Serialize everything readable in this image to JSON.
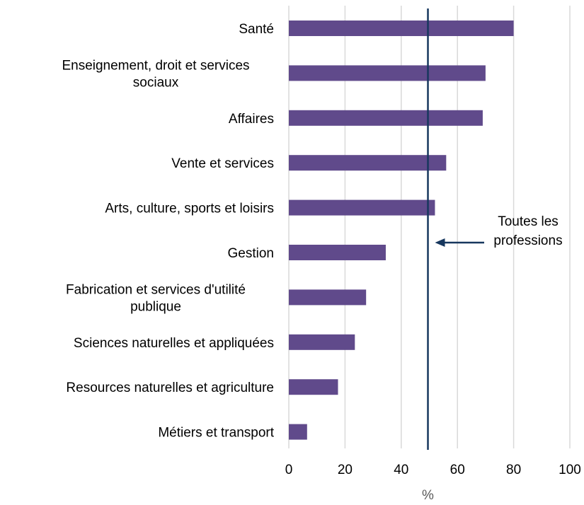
{
  "chart_data": {
    "type": "bar",
    "orientation": "horizontal",
    "categories": [
      [
        "Santé"
      ],
      [
        "Enseignement, droit et services",
        "sociaux"
      ],
      [
        "Affaires"
      ],
      [
        "Vente et services"
      ],
      [
        "Arts, culture, sports et loisirs"
      ],
      [
        "Gestion"
      ],
      [
        "Fabrication et services d'utilité",
        "publique"
      ],
      [
        "Sciences naturelles et appliquées"
      ],
      [
        "Resources naturelles et agriculture"
      ],
      [
        "Métiers et transport"
      ]
    ],
    "values": [
      80,
      70,
      69,
      56,
      52,
      34.5,
      27.5,
      23.5,
      17.5,
      6.5
    ],
    "xlim": [
      0,
      100
    ],
    "xticks": [
      "0",
      "20",
      "40",
      "60",
      "80",
      "100"
    ],
    "xlabel": "%",
    "grid": true,
    "bar_color": "#604a8b",
    "reference_line": {
      "value": 49.5,
      "color": "#17375e",
      "label_lines": [
        "Toutes les",
        "professions"
      ]
    }
  }
}
